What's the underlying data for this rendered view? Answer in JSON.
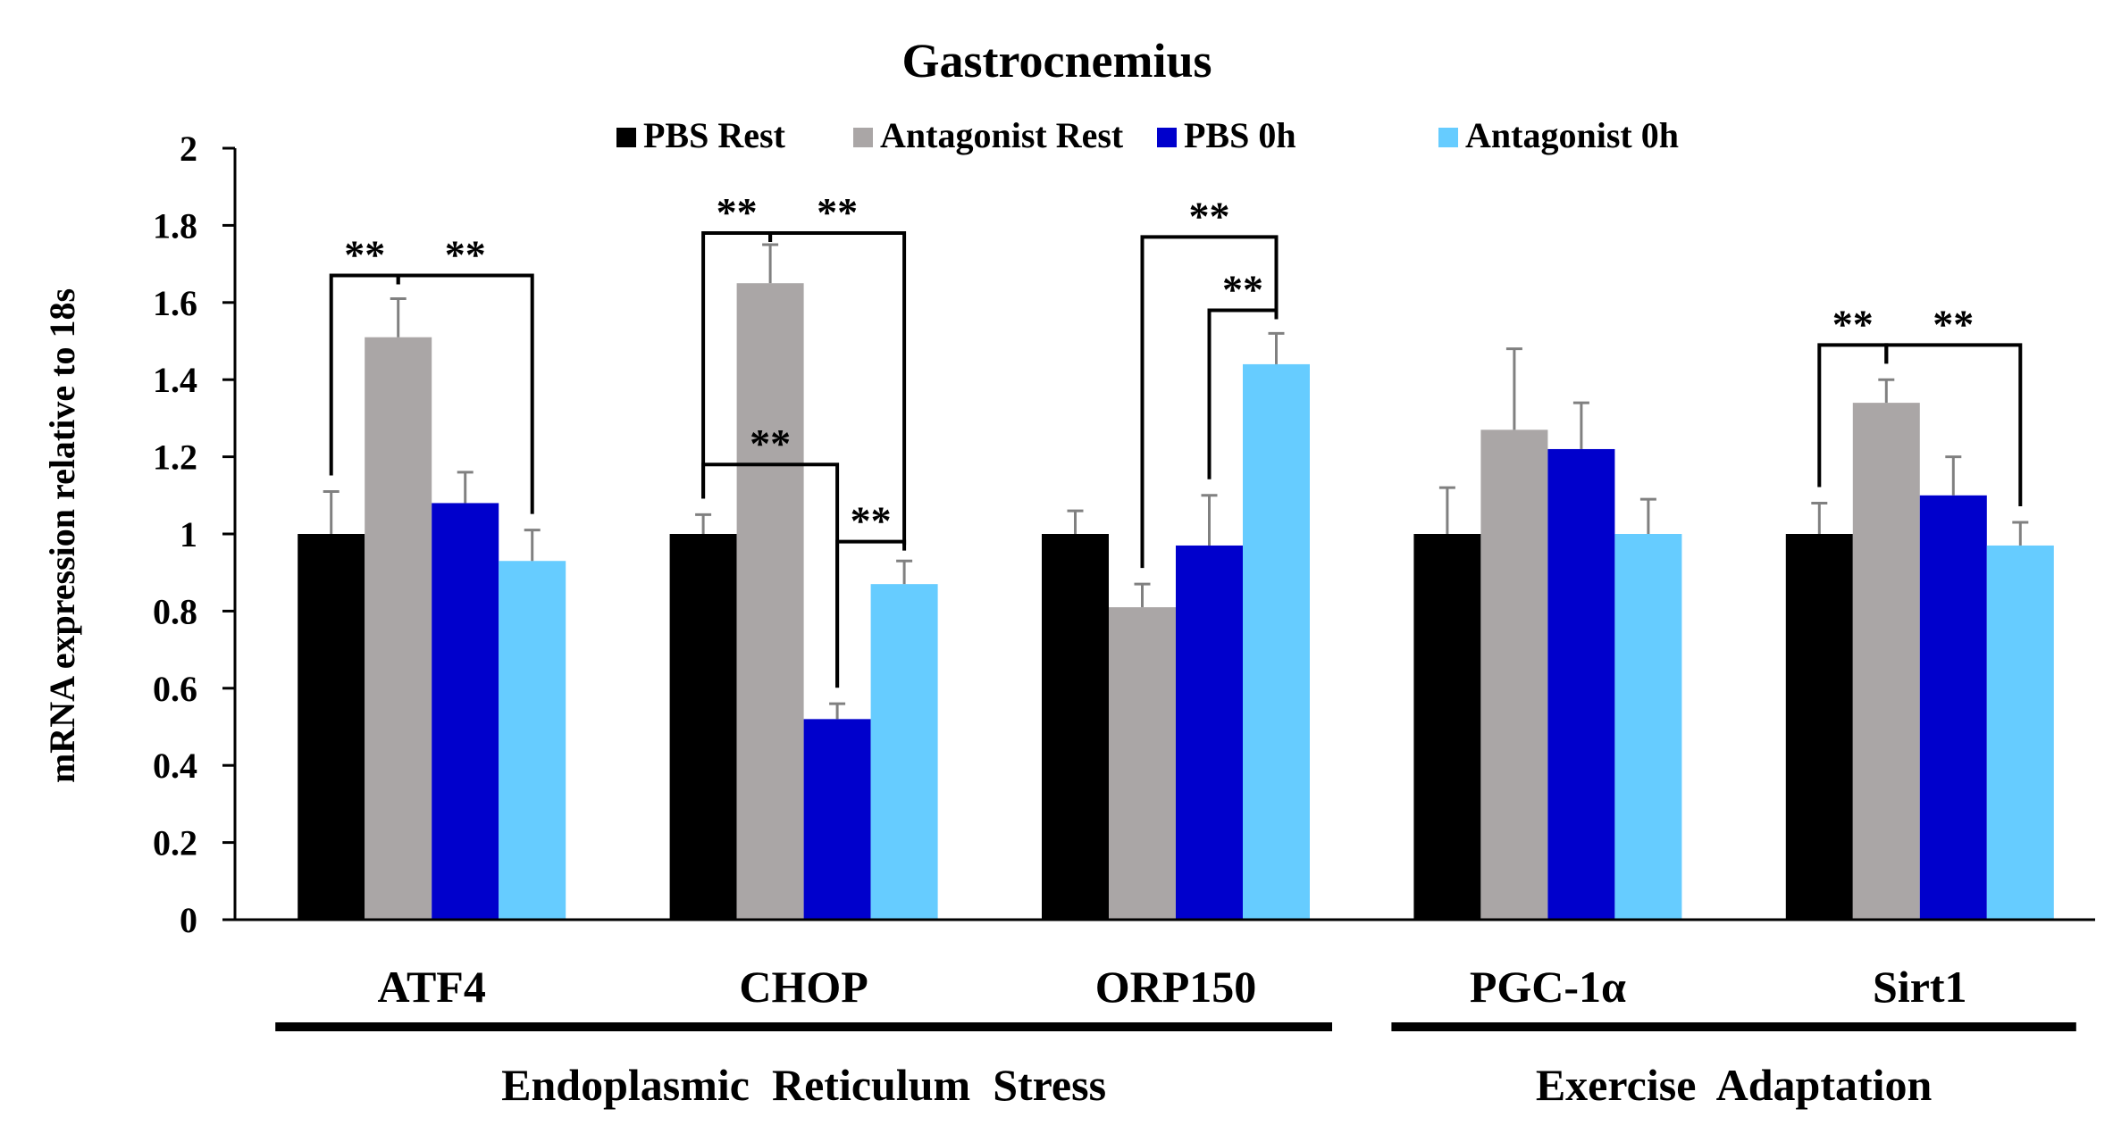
{
  "chart_data": {
    "type": "bar",
    "title": "Gastrocnemius",
    "ylabel": "mRNA expression relative to 18s",
    "xlabel": "",
    "ylim": [
      0,
      2
    ],
    "yticks": [
      "0",
      "0.2",
      "0.4",
      "0.6",
      "0.8",
      "1",
      "1.2",
      "1.4",
      "1.6",
      "1.8",
      "2"
    ],
    "grid": false,
    "legend_position": "top",
    "categories": [
      "ATF4",
      "CHOP",
      "ORP150",
      "PGC-1α",
      "Sirt1"
    ],
    "series": [
      {
        "name": "PBS Rest",
        "color": "#000000",
        "values": [
          1.0,
          1.0,
          1.0,
          1.0,
          1.0
        ],
        "errors": [
          0.11,
          0.05,
          0.06,
          0.12,
          0.08
        ]
      },
      {
        "name": "Antagonist Rest",
        "color": "#aaa6a6",
        "values": [
          1.51,
          1.65,
          0.81,
          1.27,
          1.34
        ],
        "errors": [
          0.1,
          0.1,
          0.06,
          0.21,
          0.06
        ]
      },
      {
        "name": "PBS 0h",
        "color": "#0000cc",
        "values": [
          1.08,
          0.52,
          0.97,
          1.22,
          1.1
        ],
        "errors": [
          0.08,
          0.04,
          0.13,
          0.12,
          0.1
        ]
      },
      {
        "name": "Antagonist 0h",
        "color": "#66ccff",
        "values": [
          0.93,
          0.87,
          1.44,
          1.0,
          0.97
        ],
        "errors": [
          0.08,
          0.06,
          0.08,
          0.09,
          0.06
        ]
      }
    ],
    "groups": [
      {
        "label": "Endoplasmic  Reticulum  Stress",
        "categories": [
          "ATF4",
          "CHOP",
          "ORP150"
        ]
      },
      {
        "label": "Exercise  Adaptation",
        "categories": [
          "PGC-1α",
          "Sirt1"
        ]
      }
    ],
    "significance": [
      {
        "category": 0,
        "from_series": 0,
        "to_series": 1,
        "label": "**",
        "y": 1.67
      },
      {
        "category": 0,
        "from_series": 1,
        "to_series": 3,
        "label": "**",
        "y": 1.67
      },
      {
        "category": 1,
        "from_series": 0,
        "to_series": 1,
        "label": "**",
        "y": 1.78
      },
      {
        "category": 1,
        "from_series": 1,
        "to_series": 3,
        "label": "**",
        "y": 1.78
      },
      {
        "category": 1,
        "from_series": 0,
        "to_series": 2,
        "label": "**",
        "y": 1.18
      },
      {
        "category": 1,
        "from_series": 2,
        "to_series": 3,
        "label": "**",
        "y": 0.98
      },
      {
        "category": 2,
        "from_series": 1,
        "to_series": 3,
        "label": "**",
        "y": 1.77
      },
      {
        "category": 2,
        "from_series": 2,
        "to_series": 3,
        "label": "**",
        "y": 1.58
      },
      {
        "category": 4,
        "from_series": 0,
        "to_series": 1,
        "label": "**",
        "y": 1.49
      },
      {
        "category": 4,
        "from_series": 1,
        "to_series": 3,
        "label": "**",
        "y": 1.49
      }
    ]
  }
}
